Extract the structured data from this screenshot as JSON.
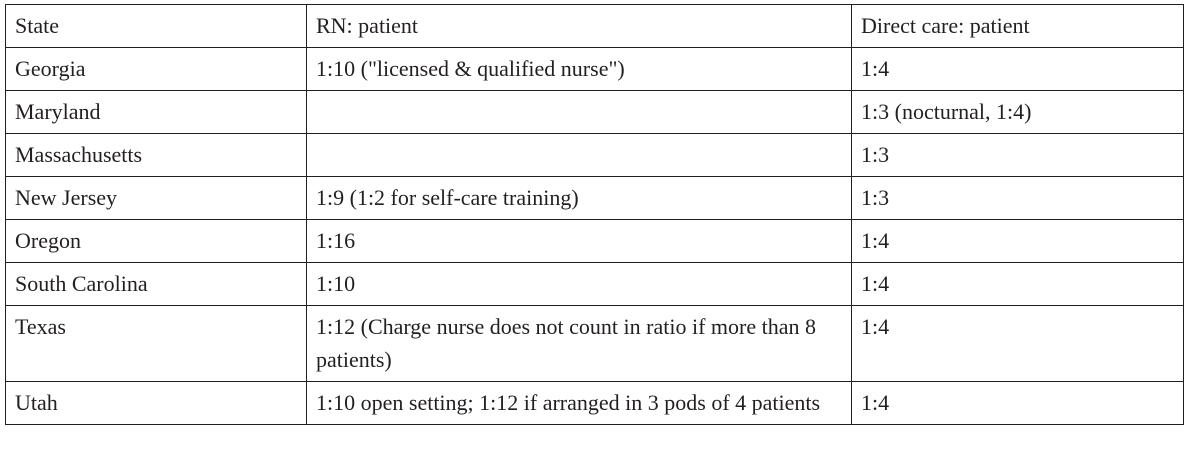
{
  "table": {
    "header": [
      "State",
      "RN: patient",
      "Direct care: patient"
    ],
    "rows": [
      [
        "Georgia",
        "1:10 (\"licensed & qualified nurse\")",
        "1:4"
      ],
      [
        "Maryland",
        null,
        "1:3 (nocturnal, 1:4)"
      ],
      [
        "Massachusetts",
        null,
        "1:3"
      ],
      [
        "New Jersey",
        "1:9 (1:2 for self-care training)",
        "1:3"
      ],
      [
        "Oregon",
        "1:16",
        "1:4"
      ],
      [
        "South Carolina",
        "1:10",
        "1:4"
      ],
      [
        "Texas",
        "1:12 (Charge nurse does not count in ratio if more than 8 patients)",
        "1:4"
      ],
      [
        "Utah",
        "1:10 open setting; 1:12 if arranged in 3 pods of 4 patients",
        "1:4"
      ]
    ]
  }
}
